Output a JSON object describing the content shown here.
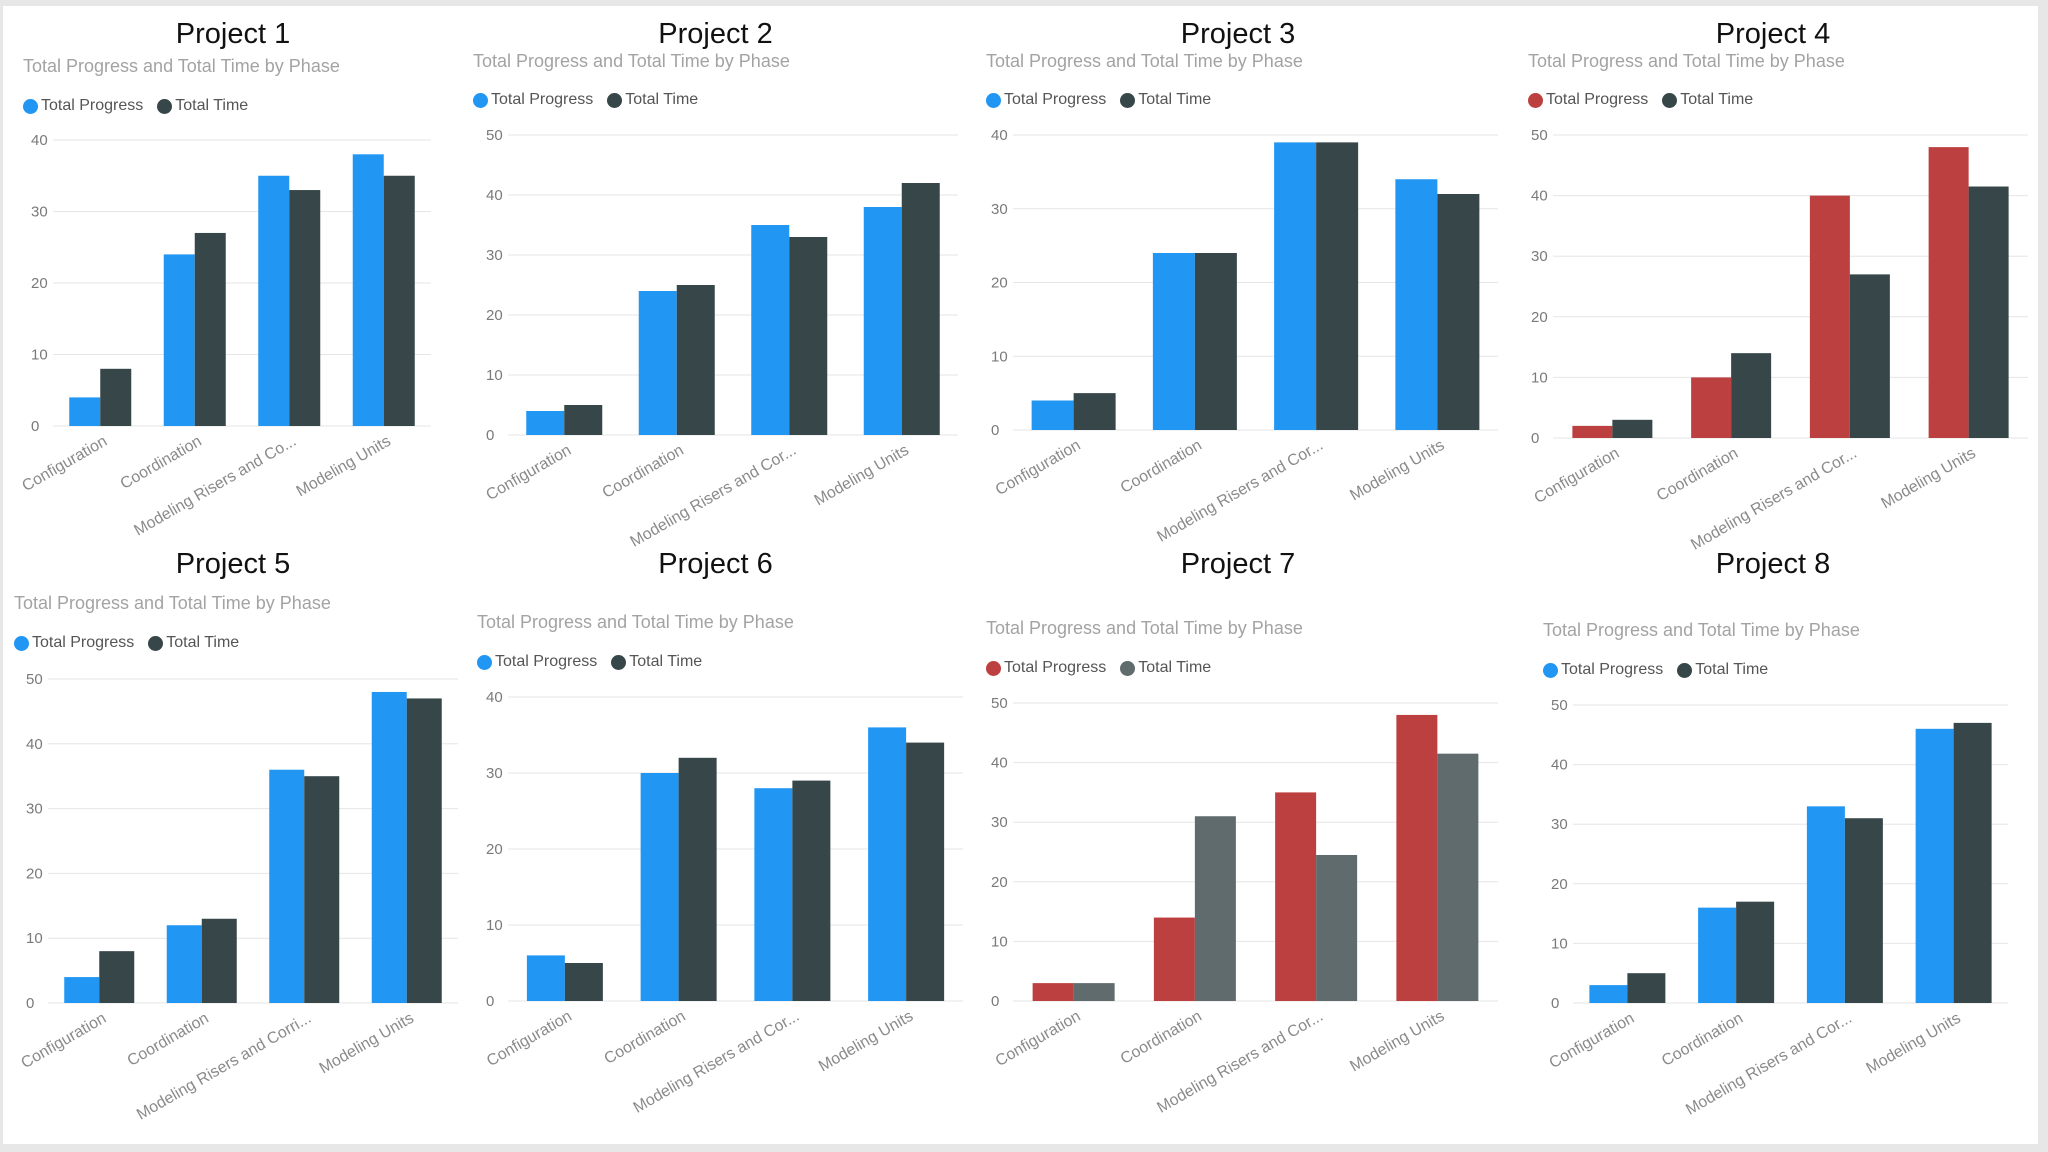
{
  "colors": {
    "blue": "#2196f3",
    "dark": "#374649",
    "red": "#bd4040",
    "gray": "#5f6b6d"
  },
  "charts": [
    {
      "title": "Project 1",
      "chart_data": {
        "type": "bar",
        "title": "Total Progress and Total Time by Phase",
        "categories": [
          "Configuration",
          "Coordination",
          "Modeling Risers and Co...",
          "Modeling Units"
        ],
        "series": [
          {
            "name": "Total Progress",
            "values": [
              4,
              24,
              35,
              38
            ],
            "color": "#2196f3"
          },
          {
            "name": "Total Time",
            "values": [
              8,
              27,
              33,
              35
            ],
            "color": "#374649"
          }
        ],
        "ylim": [
          0,
          40
        ],
        "yticks": [
          0,
          10,
          20,
          30,
          40
        ]
      }
    },
    {
      "title": "Project 2",
      "chart_data": {
        "type": "bar",
        "title": "Total Progress and Total Time by Phase",
        "categories": [
          "Configuration",
          "Coordination",
          "Modeling Risers and Cor...",
          "Modeling Units"
        ],
        "series": [
          {
            "name": "Total Progress",
            "values": [
              4,
              24,
              35,
              38
            ],
            "color": "#2196f3"
          },
          {
            "name": "Total Time",
            "values": [
              5,
              25,
              33,
              42
            ],
            "color": "#374649"
          }
        ],
        "ylim": [
          0,
          50
        ],
        "yticks": [
          0,
          10,
          20,
          30,
          40,
          50
        ]
      }
    },
    {
      "title": "Project 3",
      "chart_data": {
        "type": "bar",
        "title": "Total Progress and Total Time by Phase",
        "categories": [
          "Configuration",
          "Coordination",
          "Modeling Risers and Cor...",
          "Modeling Units"
        ],
        "series": [
          {
            "name": "Total Progress",
            "values": [
              4,
              24,
              39,
              34
            ],
            "color": "#2196f3"
          },
          {
            "name": "Total Time",
            "values": [
              5,
              24,
              39,
              32
            ],
            "color": "#374649"
          }
        ],
        "ylim": [
          0,
          40
        ],
        "yticks": [
          0,
          10,
          20,
          30,
          40
        ]
      }
    },
    {
      "title": "Project 4",
      "chart_data": {
        "type": "bar",
        "title": "Total Progress and Total Time by Phase",
        "categories": [
          "Configuration",
          "Coordination",
          "Modeling Risers and Cor...",
          "Modeling Units"
        ],
        "series": [
          {
            "name": "Total Progress",
            "values": [
              2,
              10,
              40,
              48
            ],
            "color": "#bd4040"
          },
          {
            "name": "Total Time",
            "values": [
              3,
              14,
              27,
              41.5
            ],
            "color": "#374649"
          }
        ],
        "ylim": [
          0,
          50
        ],
        "yticks": [
          0,
          10,
          20,
          30,
          40,
          50
        ]
      }
    },
    {
      "title": "Project 5",
      "chart_data": {
        "type": "bar",
        "title": "Total Progress and Total Time by Phase",
        "categories": [
          "Configuration",
          "Coordination",
          "Modeling Risers and Corri...",
          "Modeling Units"
        ],
        "series": [
          {
            "name": "Total Progress",
            "values": [
              4,
              12,
              36,
              48
            ],
            "color": "#2196f3"
          },
          {
            "name": "Total Time",
            "values": [
              8,
              13,
              35,
              47
            ],
            "color": "#374649"
          }
        ],
        "ylim": [
          0,
          50
        ],
        "yticks": [
          0,
          10,
          20,
          30,
          40,
          50
        ]
      }
    },
    {
      "title": "Project 6",
      "chart_data": {
        "type": "bar",
        "title": "Total Progress and Total Time by Phase",
        "categories": [
          "Configuration",
          "Coordination",
          "Modeling Risers and Cor...",
          "Modeling Units"
        ],
        "series": [
          {
            "name": "Total Progress",
            "values": [
              6,
              30,
              28,
              36
            ],
            "color": "#2196f3"
          },
          {
            "name": "Total Time",
            "values": [
              5,
              32,
              29,
              34
            ],
            "color": "#374649"
          }
        ],
        "ylim": [
          0,
          40
        ],
        "yticks": [
          0,
          10,
          20,
          30,
          40
        ]
      }
    },
    {
      "title": "Project 7",
      "chart_data": {
        "type": "bar",
        "title": "Total Progress and Total Time by Phase",
        "categories": [
          "Configuration",
          "Coordination",
          "Modeling Risers and Cor...",
          "Modeling Units"
        ],
        "series": [
          {
            "name": "Total Progress",
            "values": [
              3,
              14,
              35,
              48
            ],
            "color": "#bd4040"
          },
          {
            "name": "Total Time",
            "values": [
              3,
              31,
              24.5,
              41.5
            ],
            "color": "#5f6b6d"
          }
        ],
        "ylim": [
          0,
          50
        ],
        "yticks": [
          0,
          10,
          20,
          30,
          40,
          50
        ]
      }
    },
    {
      "title": "Project 8",
      "chart_data": {
        "type": "bar",
        "title": "Total Progress and Total Time by Phase",
        "categories": [
          "Configuration",
          "Coordination",
          "Modeling Risers and Cor...",
          "Modeling Units"
        ],
        "series": [
          {
            "name": "Total Progress",
            "values": [
              3,
              16,
              33,
              46
            ],
            "color": "#2196f3"
          },
          {
            "name": "Total Time",
            "values": [
              5,
              17,
              31,
              47
            ],
            "color": "#374649"
          }
        ],
        "ylim": [
          0,
          50
        ],
        "yticks": [
          0,
          10,
          20,
          30,
          40,
          50
        ]
      }
    }
  ]
}
